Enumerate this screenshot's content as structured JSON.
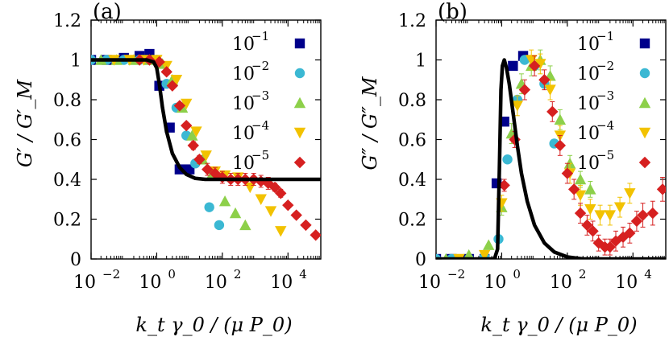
{
  "chart_data": [
    {
      "type": "scatter",
      "panel_label": "(a)",
      "title": "",
      "xlabel": "k_t γ_0 / (μ P_0)",
      "ylabel": "G′ / G′_M",
      "x_scale": "log",
      "xlim": [
        0.01,
        100000
      ],
      "ylim": [
        0,
        1.2
      ],
      "x_ticks": [
        0.01,
        1,
        100,
        10000
      ],
      "x_tick_labels": [
        "10",
        "10",
        "10",
        "10"
      ],
      "x_tick_exponents": [
        "−2",
        "0",
        "2",
        "4"
      ],
      "y_ticks": [
        0,
        0.2,
        0.4,
        0.6,
        0.8,
        1,
        1.2
      ],
      "y_tick_labels": [
        "0",
        "0.2",
        "0.4",
        "0.6",
        "0.8",
        "1",
        "1.2"
      ],
      "grid": false,
      "legend_position": "top-right",
      "series": [
        {
          "name": "10",
          "name_exponent": "−1",
          "marker": "square",
          "color": "#00008b",
          "x": [
            0.01,
            0.03,
            0.1,
            0.3,
            0.6,
            1.2,
            2.5,
            5,
            10
          ],
          "y": [
            1.0,
            1.0,
            1.01,
            1.02,
            1.03,
            0.87,
            0.66,
            0.45,
            0.45
          ]
        },
        {
          "name": "10",
          "name_exponent": "−2",
          "marker": "circle",
          "color": "#3bb8d3",
          "x": [
            0.01,
            0.03,
            0.1,
            0.3,
            1,
            2,
            4,
            8,
            15,
            40,
            80
          ],
          "y": [
            1.0,
            1.0,
            1.0,
            1.0,
            1.0,
            0.88,
            0.76,
            0.62,
            0.48,
            0.26,
            0.17
          ]
        },
        {
          "name": "10",
          "name_exponent": "−3",
          "marker": "triangle-up",
          "color": "#8dd04a",
          "x": [
            0.02,
            0.06,
            0.2,
            0.6,
            1.5,
            3,
            6,
            12,
            25,
            50,
            120,
            250,
            500
          ],
          "y": [
            1.0,
            1.0,
            1.0,
            1.0,
            0.98,
            0.9,
            0.76,
            0.62,
            0.5,
            0.43,
            0.29,
            0.23,
            0.17
          ]
        },
        {
          "name": "10",
          "name_exponent": "−4",
          "marker": "triangle-down",
          "color": "#f2c200",
          "x": [
            0.05,
            0.15,
            0.4,
            1,
            2,
            4,
            8,
            16,
            32,
            60,
            120,
            300,
            700,
            1500,
            3000,
            6000
          ],
          "y": [
            1.0,
            1.0,
            1.0,
            1.0,
            0.97,
            0.9,
            0.78,
            0.64,
            0.52,
            0.44,
            0.42,
            0.41,
            0.36,
            0.3,
            0.24,
            0.14
          ]
        },
        {
          "name": "10",
          "name_exponent": "−5",
          "marker": "diamond",
          "color": "#d62020",
          "x": [
            0.3,
            0.6,
            1.2,
            2,
            3,
            5,
            8,
            13,
            20,
            35,
            60,
            100,
            180,
            300,
            500,
            900,
            1500,
            2500,
            4000,
            6000,
            10000,
            18000,
            35000,
            70000
          ],
          "y": [
            1.0,
            1.0,
            0.99,
            0.94,
            0.87,
            0.77,
            0.67,
            0.57,
            0.5,
            0.45,
            0.43,
            0.41,
            0.4,
            0.4,
            0.4,
            0.4,
            0.39,
            0.38,
            0.36,
            0.33,
            0.27,
            0.22,
            0.17,
            0.12
          ],
          "err": [
            0,
            0,
            0,
            0,
            0,
            0,
            0,
            0.02,
            0.02,
            0.03,
            0.03,
            0.03,
            0.03,
            0.03,
            0.03,
            0.03,
            0.03,
            0.03,
            0.02,
            0.02,
            0,
            0,
            0,
            0
          ]
        }
      ],
      "curve": {
        "color": "#000000",
        "x": [
          0.01,
          0.05,
          0.2,
          0.5,
          0.8,
          1.0,
          1.2,
          1.5,
          2,
          3,
          5,
          8,
          15,
          30,
          100,
          1000,
          100000
        ],
        "y": [
          1.0,
          1.0,
          1.0,
          1.0,
          0.99,
          0.96,
          0.88,
          0.76,
          0.64,
          0.53,
          0.46,
          0.425,
          0.405,
          0.4,
          0.4,
          0.4,
          0.4
        ]
      }
    },
    {
      "type": "scatter",
      "panel_label": "(b)",
      "title": "",
      "xlabel": "k_t γ_0 / (μ P_0)",
      "ylabel": "G″ / G″_M",
      "x_scale": "log",
      "xlim": [
        0.01,
        100000
      ],
      "ylim": [
        0,
        1.2
      ],
      "x_ticks": [
        0.01,
        1,
        100,
        10000
      ],
      "x_tick_labels": [
        "10",
        "10",
        "10",
        "10"
      ],
      "x_tick_exponents": [
        "−2",
        "0",
        "2",
        "4"
      ],
      "y_ticks": [
        0,
        0.2,
        0.4,
        0.6,
        0.8,
        1,
        1.2
      ],
      "y_tick_labels": [
        "0",
        "0.2",
        "0.4",
        "0.6",
        "0.8",
        "1",
        "1.2"
      ],
      "grid": false,
      "legend_position": "top-right",
      "series": [
        {
          "name": "10",
          "name_exponent": "−1",
          "marker": "square",
          "color": "#00008b",
          "x": [
            0.01,
            0.03,
            0.1,
            0.3,
            0.7,
            1.2,
            2.2,
            4.5
          ],
          "y": [
            0.0,
            0.0,
            0.0,
            0.0,
            0.38,
            0.69,
            0.97,
            1.02
          ]
        },
        {
          "name": "10",
          "name_exponent": "−2",
          "marker": "circle",
          "color": "#3bb8d3",
          "x": [
            0.01,
            0.03,
            0.1,
            0.3,
            0.8,
            1.5,
            3,
            5,
            10,
            20,
            40
          ],
          "y": [
            0.0,
            0.0,
            0.0,
            0.01,
            0.1,
            0.5,
            0.8,
            1.0,
            0.97,
            0.88,
            0.58
          ]
        },
        {
          "name": "10",
          "name_exponent": "−3",
          "marker": "triangle-up",
          "color": "#8dd04a",
          "x": [
            0.02,
            0.1,
            0.4,
            1,
            2,
            4,
            8,
            15,
            30,
            60,
            120,
            250,
            500
          ],
          "y": [
            0.0,
            0.02,
            0.07,
            0.26,
            0.63,
            0.88,
            0.97,
            1.0,
            0.92,
            0.7,
            0.48,
            0.4,
            0.35
          ],
          "err": [
            0,
            0,
            0,
            0.04,
            0.05,
            0.05,
            0.05,
            0.05,
            0.05,
            0.05,
            0.04,
            0.04,
            0.04
          ]
        },
        {
          "name": "10",
          "name_exponent": "−4",
          "marker": "triangle-down",
          "color": "#f2c200",
          "x": [
            0.05,
            0.3,
            1,
            3,
            8,
            15,
            30,
            60,
            120,
            250,
            500,
            1000,
            2000,
            4000,
            8000
          ],
          "y": [
            0.0,
            0.02,
            0.28,
            0.77,
            1.0,
            0.98,
            0.85,
            0.62,
            0.43,
            0.32,
            0.25,
            0.22,
            0.22,
            0.26,
            0.33
          ],
          "err": [
            0,
            0,
            0.04,
            0.05,
            0.05,
            0.05,
            0.05,
            0.05,
            0.05,
            0.05,
            0.05,
            0.05,
            0.05,
            0.05,
            0.05
          ]
        },
        {
          "name": "10",
          "name_exponent": "−5",
          "marker": "diamond",
          "color": "#d62020",
          "x": [
            1.2,
            2.5,
            5,
            10,
            20,
            35,
            60,
            100,
            160,
            250,
            400,
            600,
            900,
            1400,
            2000,
            3000,
            5000,
            8000,
            13000,
            20000,
            40000,
            80000
          ],
          "y": [
            0.37,
            0.6,
            0.85,
            0.97,
            0.9,
            0.74,
            0.57,
            0.43,
            0.35,
            0.23,
            0.17,
            0.14,
            0.08,
            0.06,
            0.06,
            0.09,
            0.11,
            0.13,
            0.19,
            0.22,
            0.23,
            0.35
          ],
          "err": [
            0.03,
            0.04,
            0.05,
            0.05,
            0.05,
            0.05,
            0.05,
            0.05,
            0.05,
            0.05,
            0.05,
            0.05,
            0.04,
            0.04,
            0.04,
            0.05,
            0.05,
            0.05,
            0.05,
            0.06,
            0.06,
            0.06
          ]
        }
      ],
      "curve": {
        "color": "#000000",
        "x": [
          0.01,
          0.3,
          0.6,
          0.75,
          0.85,
          0.95,
          1.05,
          1.2,
          1.4,
          1.7,
          2.2,
          3,
          4,
          6,
          10,
          20,
          40,
          100,
          300,
          1000,
          100000
        ],
        "y": [
          0.0,
          0.0,
          0.0,
          0.05,
          0.45,
          0.85,
          0.97,
          1.0,
          0.96,
          0.88,
          0.74,
          0.57,
          0.43,
          0.29,
          0.17,
          0.08,
          0.035,
          0.01,
          0.0,
          0.0,
          0.0
        ]
      }
    }
  ]
}
